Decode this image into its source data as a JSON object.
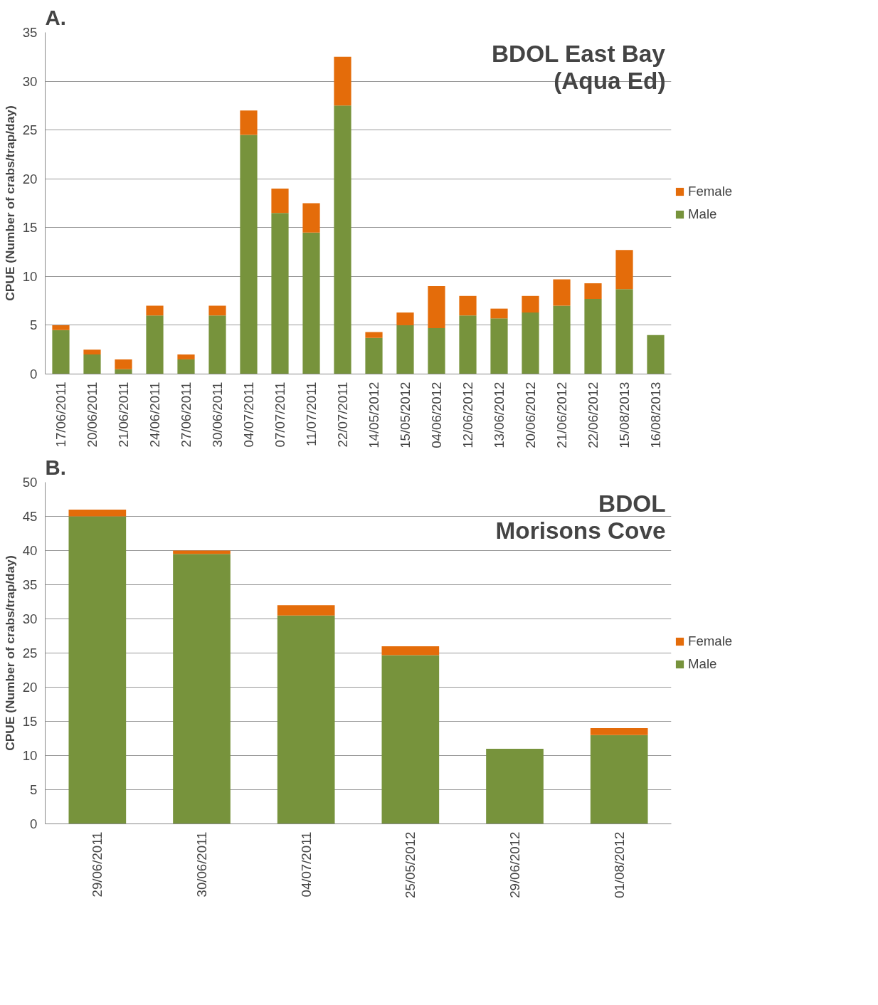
{
  "chart_data": [
    {
      "type": "bar",
      "title": "BDOL East Bay\n(Aqua Ed)",
      "ylabel": "CPUE (Number of crabs/trap/day)",
      "annotations": [
        "A."
      ],
      "stacked": true,
      "legend": "right",
      "grid": "y",
      "categories": [
        "17/06/2011",
        "20/06/2011",
        "21/06/2011",
        "24/06/2011",
        "27/06/2011",
        "30/06/2011",
        "04/07/2011",
        "07/07/2011",
        "11/07/2011",
        "22/07/2011",
        "14/05/2012",
        "15/05/2012",
        "04/06/2012",
        "12/06/2012",
        "13/06/2012",
        "20/06/2012",
        "21/06/2012",
        "22/06/2012",
        "15/08/2013",
        "16/08/2013"
      ],
      "series": [
        {
          "name": "Male",
          "color": "#77933c",
          "values": [
            4.5,
            2,
            0.5,
            6,
            1.5,
            6,
            24.5,
            16.5,
            14.5,
            27.5,
            3.7,
            5,
            4.7,
            6,
            5.7,
            6.3,
            7,
            7.7,
            8.7,
            4
          ]
        },
        {
          "name": "Female",
          "color": "#e46c0a",
          "values": [
            0.5,
            0.5,
            1,
            1,
            0.5,
            1,
            2.5,
            2.5,
            3,
            5,
            0.6,
            1.3,
            4.3,
            2,
            1,
            1.7,
            2.7,
            1.6,
            4,
            0
          ]
        }
      ],
      "ylim": [
        0,
        35
      ],
      "yticks": [
        0,
        5,
        10,
        15,
        20,
        25,
        30,
        35
      ]
    },
    {
      "type": "bar",
      "title": "BDOL\nMorisons Cove",
      "ylabel": "CPUE (Number of crabs/trap/day)",
      "annotations": [
        "B."
      ],
      "stacked": true,
      "legend": "right",
      "grid": "y",
      "categories": [
        "29/06/2011",
        "30/06/2011",
        "04/07/2011",
        "25/05/2012",
        "29/06/2012",
        "01/08/2012"
      ],
      "series": [
        {
          "name": "Male",
          "color": "#77933c",
          "values": [
            45,
            39.5,
            30.5,
            24.7,
            11,
            13
          ]
        },
        {
          "name": "Female",
          "color": "#e46c0a",
          "values": [
            1,
            0.5,
            1.5,
            1.3,
            0,
            1
          ]
        }
      ],
      "ylim": [
        0,
        50
      ],
      "yticks": [
        0,
        5,
        10,
        15,
        20,
        25,
        30,
        35,
        40,
        45,
        50
      ]
    }
  ]
}
